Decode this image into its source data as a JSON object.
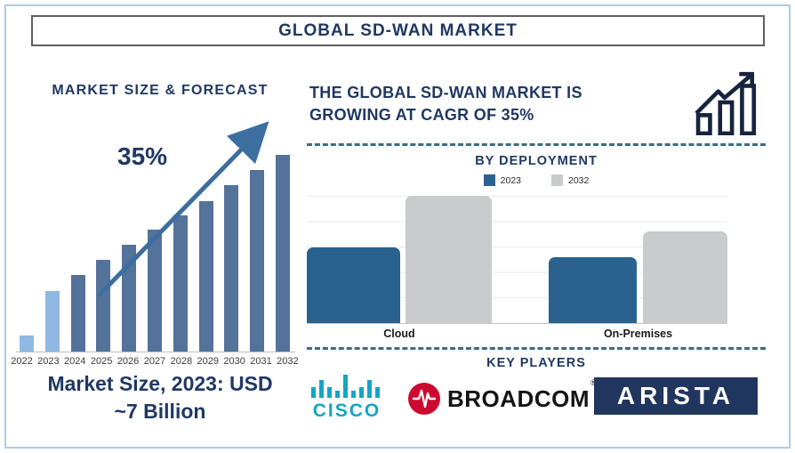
{
  "header": {
    "title": "GLOBAL SD-WAN MARKET"
  },
  "left_panel": {
    "title": "MARKET SIZE & FORECAST",
    "growth_label": "35%",
    "caption_line1": "Market Size, 2023: USD",
    "caption_line2": "~7 Billion"
  },
  "right_panel": {
    "headline_line1": "THE GLOBAL SD-WAN MARKET IS",
    "headline_line2": "GROWING AT CAGR OF 35%",
    "growth_icon": "bar-chart-with-rising-arrow-icon",
    "deployment_title": "BY DEPLOYMENT",
    "key_players_title": "KEY PLAYERS",
    "players": {
      "cisco_label": "CISCO",
      "broadcom_label": "BROADCOM",
      "broadcom_reg": "®",
      "arista_label": "ARISTA"
    }
  },
  "colors": {
    "navy_text": "#1F3864",
    "forecast_bar_dark": "#54739A",
    "forecast_bar_light": "#8FB9E2",
    "trend_arrow": "#3C6E9F",
    "deployment_2023": "#2A628F",
    "deployment_2032": "#C9CBCD",
    "dashed_divider": "#3E6C80",
    "outer_border": "#AFCCE0",
    "cisco_teal": "#14A5C4",
    "broadcom_red": "#CC0A2F",
    "arista_navy": "#21365E"
  },
  "chart_data": [
    {
      "type": "bar",
      "title": "MARKET SIZE & FORECAST",
      "categories": [
        "2022",
        "2023",
        "2024",
        "2025",
        "2026",
        "2027",
        "2028",
        "2029",
        "2030",
        "2031",
        "2032"
      ],
      "values": [
        18,
        68,
        86,
        103,
        120,
        137,
        153,
        169,
        187,
        204,
        221
      ],
      "value_axis_labeled": false,
      "values_note": "relative bar heights (no numeric axis shown); 2023 ≈ USD 7 Billion per caption",
      "annotation": "35%",
      "highlight_color": "#8FB9E2",
      "bar_color": "#54739A",
      "highlighted_categories": [
        "2022",
        "2023"
      ],
      "xlabel": "",
      "ylabel": "",
      "grid": false,
      "legend_position": "none"
    },
    {
      "type": "bar",
      "title": "BY DEPLOYMENT",
      "categories": [
        "Cloud",
        "On-Premises"
      ],
      "series": [
        {
          "name": "2023",
          "color": "#2A628F",
          "values": [
            85,
            74
          ]
        },
        {
          "name": "2032",
          "color": "#C9CBCD",
          "values": [
            143,
            103
          ]
        }
      ],
      "value_axis_labeled": false,
      "values_note": "relative bar heights (no numeric axis shown)",
      "xlabel": "",
      "ylabel": "",
      "grid": true,
      "legend_position": "top-center",
      "ylim": [
        0,
        148
      ]
    }
  ]
}
